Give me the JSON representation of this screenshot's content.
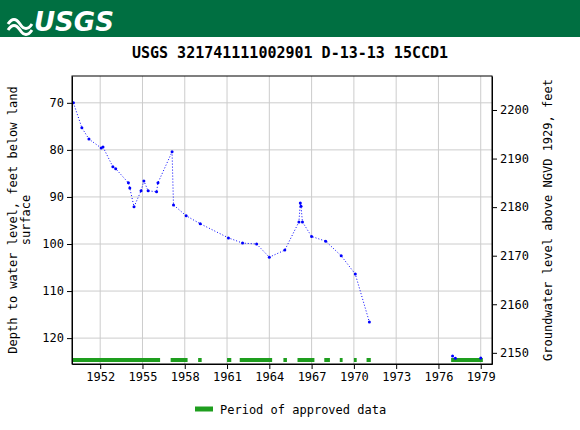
{
  "chart_data": {
    "type": "line",
    "brand": "USGS",
    "title": "USGS 321741111002901 D-13-13 15CCD1",
    "ylabel": [
      "Depth to water level, feet below land",
      "surface"
    ],
    "y2label": "Groundwater level above NGVD 1929, feet",
    "xlim": [
      1950.0,
      1979.8
    ],
    "xticks": [
      1952,
      1955,
      1958,
      1961,
      1964,
      1967,
      1970,
      1973,
      1976,
      1979
    ],
    "ylim": [
      125.5,
      64.3
    ],
    "yticks": [
      70,
      80,
      90,
      100,
      110,
      120
    ],
    "y2lim": [
      2147.7,
      2207
    ],
    "y2ticks": [
      2150,
      2160,
      2170,
      2180,
      2190,
      2200
    ],
    "grid": true,
    "series": [
      {
        "color": "#0000ff",
        "marker": "point",
        "line_style": "dotted",
        "x": [
          1950.1,
          1950.7,
          1951.2,
          1952.07,
          1952.2,
          1952.9,
          1953.1,
          1954.0,
          1954.1,
          1954.4,
          1954.9,
          1955.1,
          1955.4,
          1956.0,
          1956.1,
          1957.1,
          1957.2,
          1958.1,
          1959.1,
          1961.1,
          1962.1,
          1963.1,
          1964.0,
          1965.1,
          1966.1,
          1966.2,
          1966.25,
          1966.35,
          1967.0,
          1968.0,
          1969.1,
          1970.1,
          1971.1,
          null,
          1977.0,
          1977.2,
          null,
          1979.0
        ],
        "values": [
          70.0,
          75.3,
          77.7,
          79.6,
          79.4,
          83.6,
          84.0,
          87.0,
          88.1,
          92.1,
          88.7,
          86.6,
          88.7,
          88.9,
          87.0,
          80.4,
          91.7,
          94.0,
          95.7,
          98.7,
          99.8,
          100.0,
          102.8,
          101.3,
          95.3,
          91.3,
          92.0,
          95.3,
          98.4,
          99.4,
          102.5,
          106.4,
          116.6,
          null,
          123.8,
          124.3,
          null,
          124.2
        ]
      }
    ],
    "periods": {
      "name": "Period of approved data",
      "color": "#1e9e1e",
      "ranges": [
        [
          1950.0,
          1956.25
        ],
        [
          1957.0,
          1958.2
        ],
        [
          1958.95,
          1959.2
        ],
        [
          1961.0,
          1961.3
        ],
        [
          1961.9,
          1964.2
        ],
        [
          1965.0,
          1965.25
        ],
        [
          1966.0,
          1967.2
        ],
        [
          1967.9,
          1968.3
        ],
        [
          1969.0,
          1969.2
        ],
        [
          1970.0,
          1970.2
        ],
        [
          1970.9,
          1971.2
        ],
        [
          1976.9,
          1979.15
        ]
      ]
    }
  }
}
